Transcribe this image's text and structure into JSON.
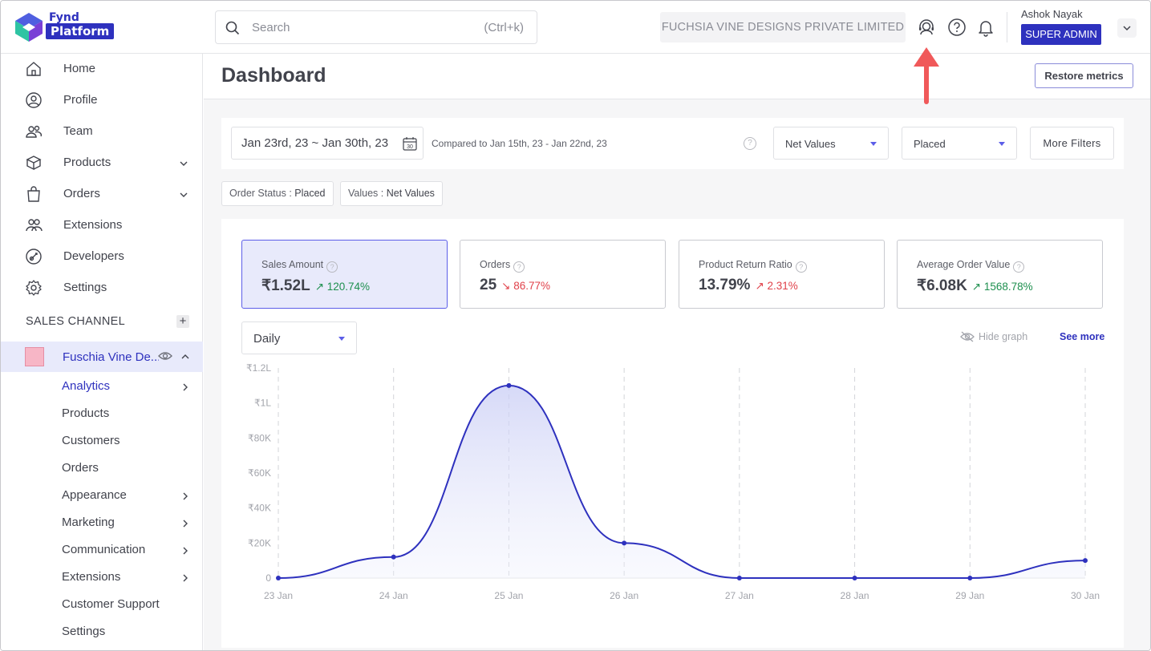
{
  "header": {
    "logo_top": "Fynd",
    "logo_bottom": "Platform",
    "search_placeholder": "Search",
    "search_shortcut": "(Ctrl+k)",
    "company": "FUCHSIA VINE DESIGNS PRIVATE LIMITED",
    "user_name": "Ashok Nayak",
    "user_role": "SUPER ADMIN"
  },
  "sidebar": {
    "items": [
      {
        "label": "Home",
        "icon": "home-icon"
      },
      {
        "label": "Profile",
        "icon": "profile-icon"
      },
      {
        "label": "Team",
        "icon": "team-icon"
      },
      {
        "label": "Products",
        "icon": "box-icon"
      },
      {
        "label": "Orders",
        "icon": "bag-icon"
      },
      {
        "label": "Extensions",
        "icon": "extensions-icon"
      },
      {
        "label": "Developers",
        "icon": "developers-icon"
      },
      {
        "label": "Settings",
        "icon": "gear-icon"
      }
    ],
    "sales_channel_title": "SALES CHANNEL",
    "channel_name": "Fuschia Vine De...",
    "sub_items": [
      {
        "label": "Analytics"
      },
      {
        "label": "Products"
      },
      {
        "label": "Customers"
      },
      {
        "label": "Orders"
      },
      {
        "label": "Appearance"
      },
      {
        "label": "Marketing"
      },
      {
        "label": "Communication"
      },
      {
        "label": "Extensions"
      },
      {
        "label": "Customer Support"
      },
      {
        "label": "Settings"
      }
    ]
  },
  "main": {
    "title": "Dashboard",
    "restore_label": "Restore metrics",
    "date_range": "Jan 23rd, 23 ~ Jan 30th, 23",
    "calendar_day": "30",
    "compared": "Compared to Jan 15th, 23 - Jan 22nd, 23",
    "values_select": "Net Values",
    "status_select": "Placed",
    "more_filters": "More Filters",
    "chips": [
      {
        "key": "Order Status : ",
        "value": "Placed"
      },
      {
        "key": "Values : ",
        "value": "Net Values"
      }
    ],
    "cards": [
      {
        "title": "Sales Amount",
        "value": "₹1.52L",
        "delta": "120.74%",
        "direction": "up"
      },
      {
        "title": "Orders",
        "value": "25",
        "delta": "86.77%",
        "direction": "down"
      },
      {
        "title": "Product Return Ratio",
        "value": "13.79%",
        "delta": "2.31%",
        "direction": "up-bad"
      },
      {
        "title": "Average Order Value",
        "value": "₹6.08K",
        "delta": "1568.78%",
        "direction": "up"
      }
    ],
    "period_select": "Daily",
    "hide_graph": "Hide graph",
    "see_more": "See more"
  },
  "colors": {
    "brand": "#2e31be",
    "accent": "#5c5ee8",
    "up": "#1d8f4e",
    "down": "#e0414a",
    "annotation_arrow": "#f0595a"
  },
  "chart_data": {
    "type": "area",
    "x": [
      "23 Jan",
      "24 Jan",
      "25 Jan",
      "26 Jan",
      "27 Jan",
      "28 Jan",
      "29 Jan",
      "30 Jan"
    ],
    "series": [
      {
        "values": [
          0,
          12000,
          110000,
          20000,
          0,
          0,
          0,
          10000
        ]
      }
    ],
    "y_ticks": [
      "0",
      "₹20K",
      "₹40K",
      "₹60K",
      "₹80K",
      "₹1L",
      "₹1.2L"
    ],
    "ylim": [
      0,
      120000
    ],
    "grid": "vertical dashed"
  }
}
